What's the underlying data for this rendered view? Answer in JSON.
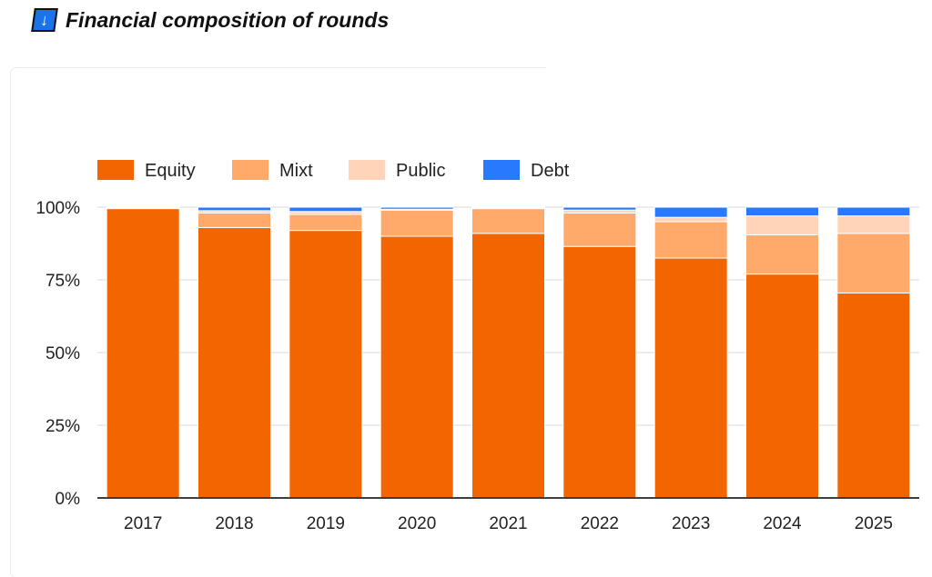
{
  "header": {
    "icon": "arrow-down-icon",
    "icon_glyph": "↓",
    "title": "Financial composition of rounds"
  },
  "colors": {
    "Equity": "#f26500",
    "Mixt": "#ffa96b",
    "Public": "#ffd4b8",
    "Debt": "#2979ff",
    "title_icon_bg": "#1a73e8"
  },
  "chart_data": {
    "type": "bar",
    "stacked": true,
    "categories": [
      "2017",
      "2018",
      "2019",
      "2020",
      "2021",
      "2022",
      "2023",
      "2024",
      "2025"
    ],
    "series": [
      {
        "name": "Equity",
        "values": [
          99.5,
          93,
          92,
          90,
          91,
          86.5,
          82.5,
          77,
          70.5
        ]
      },
      {
        "name": "Mixt",
        "values": [
          0.3,
          5,
          5.5,
          9,
          8.5,
          11.5,
          12.5,
          13.5,
          20.5
        ]
      },
      {
        "name": "Public",
        "values": [
          0.2,
          0.8,
          1,
          0.3,
          0.3,
          1,
          1.5,
          6.5,
          6
        ]
      },
      {
        "name": "Debt",
        "values": [
          0,
          1.2,
          1.5,
          0.7,
          0.2,
          1,
          3.5,
          3,
          3
        ]
      }
    ],
    "yticks": [
      "0%",
      "25%",
      "50%",
      "75%",
      "100%"
    ],
    "ylim": [
      0,
      100
    ],
    "legend": "top-left",
    "grid": true
  }
}
